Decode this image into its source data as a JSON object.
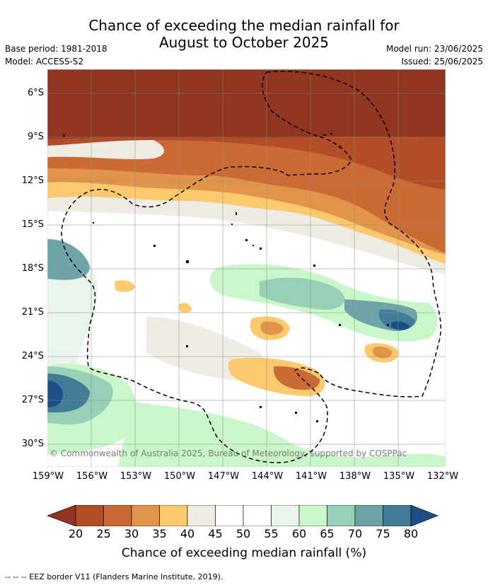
{
  "title_line1": "Chance of exceeding the median rainfall for",
  "title_line2": "August to October 2025",
  "base_period": "Base period: 1981-2018",
  "model": "Model: ACCESS-S2",
  "model_run": "Model run: 23/06/2025",
  "issued": "Issued: 25/06/2025",
  "copyright": "© Commonwealth of Australia 2025, Bureau of Meteorology, supported by COSPPac",
  "footnote": "-- -- -- EEZ border V11 (Flanders Marine Institute, 2019).",
  "y_ticks": [
    "6°S",
    "9°S",
    "12°S",
    "15°S",
    "18°S",
    "21°S",
    "24°S",
    "27°S",
    "30°S"
  ],
  "x_ticks": [
    "159°W",
    "156°W",
    "153°W",
    "150°W",
    "147°W",
    "144°W",
    "141°W",
    "138°W",
    "135°W",
    "132°W"
  ],
  "colorbar": {
    "title": "Chance of exceeding median rainfall (%)",
    "labels": [
      "20",
      "25",
      "30",
      "35",
      "40",
      "45",
      "50",
      "55",
      "60",
      "65",
      "70",
      "75",
      "80"
    ],
    "colors": [
      "#8f3520",
      "#b34d28",
      "#cc6a35",
      "#e1944a",
      "#fcc96f",
      "#efece6",
      "#ffffff",
      "#ffffff",
      "#e9f5ea",
      "#c9f7ca",
      "#98cfb7",
      "#6ea3a8",
      "#427c96",
      "#1b4f86"
    ]
  },
  "chart_data": {
    "type": "heatmap",
    "title": "Chance of exceeding the median rainfall for August to October 2025",
    "xlabel": "",
    "ylabel": "",
    "xlim": [
      "159°W",
      "132°W"
    ],
    "ylim": [
      "31°S",
      "5°S"
    ],
    "value_units": "%",
    "levels": [
      20,
      25,
      30,
      35,
      40,
      45,
      50,
      55,
      60,
      65,
      70,
      75,
      80
    ],
    "regions": [
      {
        "area": "north of 9°S",
        "value_range": [
          15,
          20
        ]
      },
      {
        "area": "9°S-16°S central/eastern",
        "value_range": [
          25,
          40
        ]
      },
      {
        "area": "16°S-25°S",
        "value_range": [
          45,
          60
        ]
      },
      {
        "area": "around 20°S 159°W-156°W and 21°S 136°W",
        "value_range": [
          70,
          80
        ]
      },
      {
        "area": "around 23°S 144°W",
        "value_range": [
          30,
          35
        ]
      },
      {
        "area": "around 26°S 141°W",
        "value_range": [
          25,
          35
        ]
      },
      {
        "area": "26°S 159°W",
        "value_range": [
          80,
          85
        ]
      }
    ]
  }
}
